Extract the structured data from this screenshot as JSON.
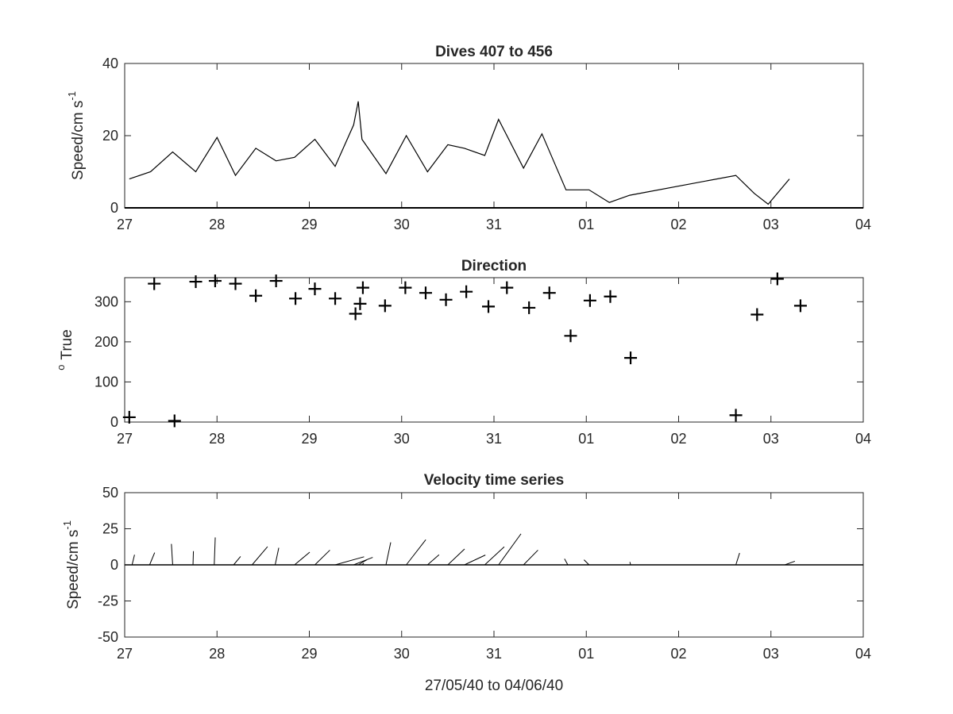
{
  "figure": {
    "xlabel": "27/05/40 to 04/06/40"
  },
  "chart_data": [
    {
      "type": "line",
      "title": "Dives 407 to 456",
      "ylabel": "Speed/cm s",
      "ylabel_exponent": "-1",
      "xlim": [
        0,
        8
      ],
      "ylim": [
        0,
        40
      ],
      "x_ticks": [
        0,
        1,
        2,
        3,
        4,
        5,
        6,
        7,
        8
      ],
      "x_tick_labels": [
        "27",
        "28",
        "29",
        "30",
        "31",
        "01",
        "02",
        "03",
        "04"
      ],
      "y_ticks": [
        0,
        20,
        40
      ],
      "y_tick_labels": [
        "0",
        "20",
        "40"
      ],
      "series": [
        {
          "x": [
            0.05,
            0.28,
            0.52,
            0.77,
            1.0,
            1.2,
            1.42,
            1.64,
            1.84,
            2.06,
            2.28,
            2.48,
            2.53,
            2.57,
            2.83,
            3.05,
            3.28,
            3.5,
            3.68,
            3.9,
            4.05,
            4.32,
            4.52,
            4.78,
            5.03,
            5.25,
            5.47,
            6.62,
            6.82,
            6.97,
            7.2
          ],
          "y": [
            8,
            10,
            15.5,
            10,
            19.5,
            9,
            16.5,
            13,
            14,
            19,
            11.5,
            23,
            29.5,
            19,
            9.5,
            20,
            10,
            17.5,
            16.5,
            14.5,
            24.5,
            11,
            20.5,
            5,
            5,
            1.5,
            3.5,
            9,
            4,
            1,
            8
          ]
        }
      ]
    },
    {
      "type": "scatter",
      "title": "Direction",
      "ylabel": "True",
      "ylabel_prefix": "o",
      "marker": "+",
      "xlim": [
        0,
        8
      ],
      "ylim": [
        0,
        360
      ],
      "x_ticks": [
        0,
        1,
        2,
        3,
        4,
        5,
        6,
        7,
        8
      ],
      "x_tick_labels": [
        "27",
        "28",
        "29",
        "30",
        "31",
        "01",
        "02",
        "03",
        "04"
      ],
      "y_ticks": [
        0,
        100,
        200,
        300
      ],
      "y_tick_labels": [
        "0",
        "100",
        "200",
        "300"
      ],
      "series": [
        {
          "x": [
            0.05,
            0.32,
            0.54,
            0.77,
            0.98,
            1.2,
            1.42,
            1.64,
            1.85,
            2.06,
            2.28,
            2.5,
            2.55,
            2.58,
            2.82,
            3.04,
            3.26,
            3.48,
            3.7,
            3.94,
            4.14,
            4.38,
            4.6,
            4.83,
            5.04,
            5.26,
            5.48,
            6.62,
            6.85,
            7.07,
            7.32
          ],
          "y": [
            12,
            345,
            3,
            350,
            352,
            345,
            315,
            352,
            308,
            332,
            308,
            270,
            295,
            335,
            290,
            335,
            322,
            305,
            325,
            288,
            335,
            285,
            322,
            215,
            303,
            313,
            160,
            17,
            268,
            357,
            290
          ]
        }
      ]
    },
    {
      "type": "quiver",
      "title": "Velocity time series",
      "ylabel": "Speed/cm s",
      "ylabel_exponent": "-1",
      "xlim": [
        0,
        8
      ],
      "ylim": [
        -50,
        50
      ],
      "x_ticks": [
        0,
        1,
        2,
        3,
        4,
        5,
        6,
        7,
        8
      ],
      "x_tick_labels": [
        "27",
        "28",
        "29",
        "30",
        "31",
        "01",
        "02",
        "03",
        "04"
      ],
      "y_ticks": [
        50,
        25,
        0,
        -25,
        -50
      ],
      "y_tick_labels": [
        "50",
        "25",
        "0",
        "-25",
        "-50"
      ],
      "series": [
        {
          "x": [
            0.08,
            0.27,
            0.52,
            0.74,
            0.97,
            1.18,
            1.38,
            1.63,
            1.84,
            2.06,
            2.28,
            2.48,
            2.53,
            2.57,
            2.83,
            3.05,
            3.28,
            3.5,
            3.68,
            3.9,
            4.05,
            4.32,
            4.8,
            5.03,
            5.48,
            6.62,
            7.15
          ],
          "u": [
            1.7,
            3.5,
            -0.9,
            0.3,
            0.7,
            4.8,
            10.7,
            2.5,
            10.5,
            10.4,
            20,
            13.2,
            6,
            1.3,
            3.3,
            13.5,
            8,
            11.6,
            14.5,
            13.5,
            15.5,
            10,
            -2.3,
            -3.5,
            -0.5,
            2.6,
            7
          ]
        },
        {
          "v": [
            7,
            8.5,
            14.5,
            9.5,
            19,
            5.8,
            12.6,
            11.8,
            8.8,
            10.2,
            5.6,
            5.2,
            3.5,
            1.1,
            15.6,
            17.4,
            7,
            11,
            6.8,
            12.5,
            21.5,
            10.2,
            4.2,
            3.5,
            2,
            8.2,
            2.5
          ]
        }
      ]
    }
  ]
}
